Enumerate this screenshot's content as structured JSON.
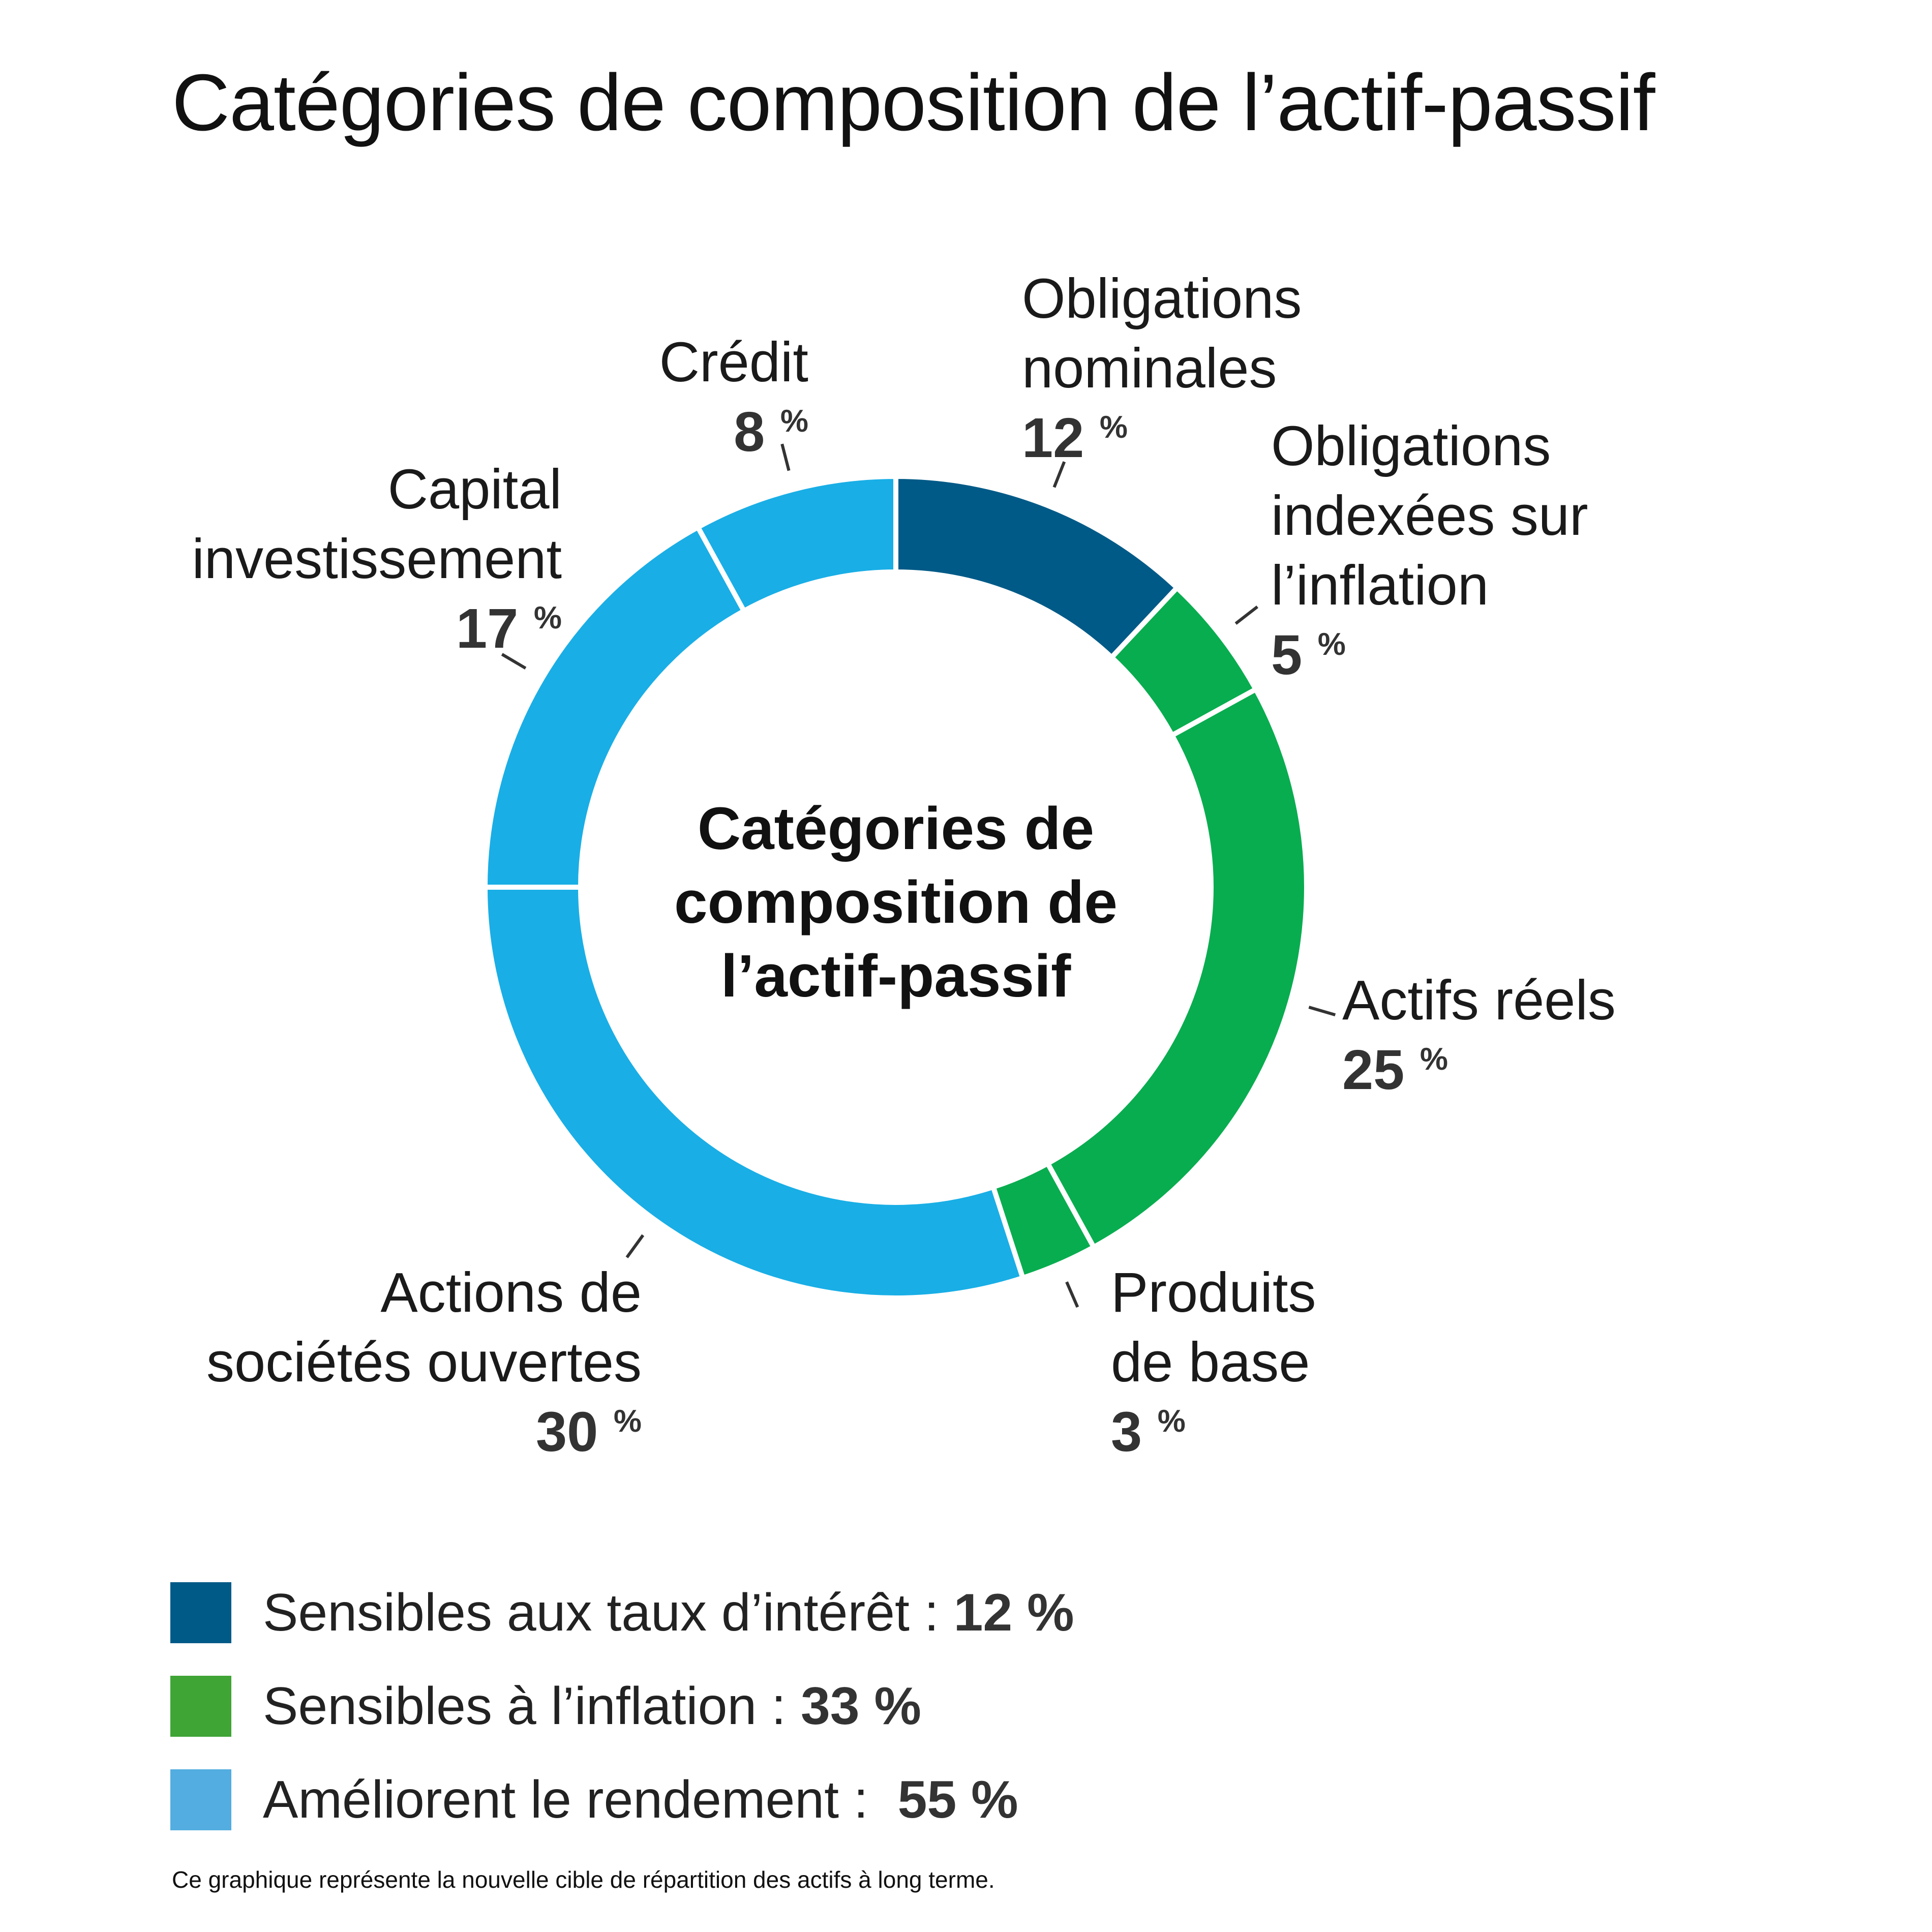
{
  "title": "Catégories de composition de l’actif-passif",
  "center_label": [
    "Catégories de",
    "composition de",
    "l’actif-passif"
  ],
  "chart_data": {
    "type": "pie",
    "title": "Catégories de composition de l’actif-passif",
    "unit": "%",
    "pct_symbol": "%",
    "slices": [
      {
        "label_lines": [
          "Obligations",
          "nominales"
        ],
        "value": 12,
        "color": "#005a87"
      },
      {
        "label_lines": [
          "Obligations",
          "indexées sur",
          "l’inflation"
        ],
        "value": 5,
        "color": "#08ad4f"
      },
      {
        "label_lines": [
          "Actifs réels"
        ],
        "value": 25,
        "color": "#08ad4f"
      },
      {
        "label_lines": [
          "Produits",
          "de base"
        ],
        "value": 3,
        "color": "#08ad4f"
      },
      {
        "label_lines": [
          "Actions de",
          "sociétés ouvertes"
        ],
        "value": 30,
        "color": "#19aee6"
      },
      {
        "label_lines": [
          "Capital",
          "investissement"
        ],
        "value": 17,
        "color": "#19aee6"
      },
      {
        "label_lines": [
          "Crédit"
        ],
        "value": 8,
        "color": "#19aee6"
      }
    ]
  },
  "legend": [
    {
      "label": "Sensibles aux taux d’intérêt : ",
      "value": "12 %",
      "color": "#005a87"
    },
    {
      "label": "Sensibles à l’inflation : ",
      "value": "33 %",
      "color": "#3fa535"
    },
    {
      "label": "Améliorent le rendement :  ",
      "value": "55 %",
      "color": "#53ade0"
    }
  ],
  "footnote": "Ce graphique représente la nouvelle cible de répartition des actifs à long terme."
}
